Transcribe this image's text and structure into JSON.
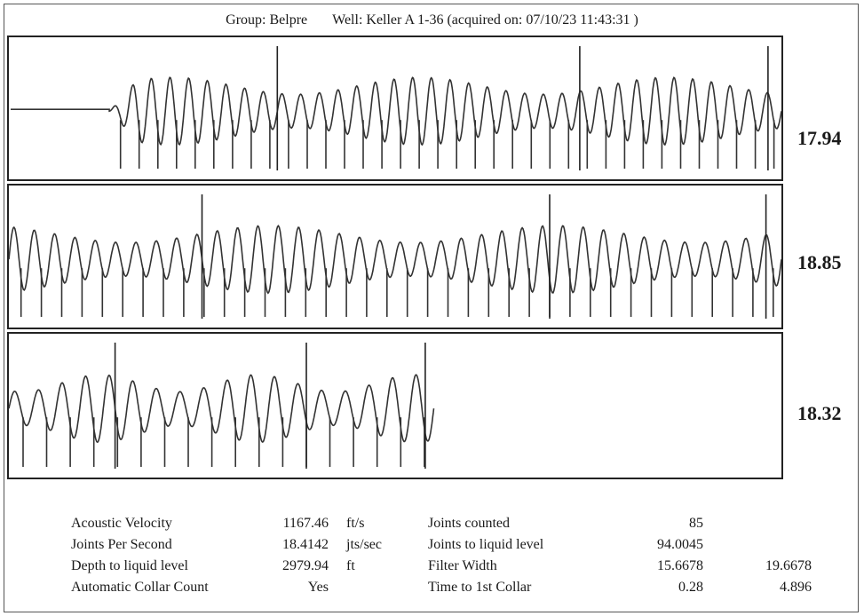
{
  "header": {
    "group": "Group: Belpre",
    "well": "Well: Keller A 1-36 (acquired on: 07/10/23 11:43:31 )"
  },
  "chart_data": [
    {
      "type": "line",
      "title": "",
      "series": [
        {
          "name": "",
          "value_label": "17.94"
        }
      ],
      "cycles": 36,
      "start_fraction": 0.13,
      "joint_rate": "17.94"
    },
    {
      "type": "line",
      "title": "",
      "series": [
        {
          "name": "",
          "value_label": "18.85"
        }
      ],
      "cycles": 38,
      "start_fraction": 0.0,
      "joint_rate": "18.85"
    },
    {
      "type": "line",
      "title": "",
      "series": [
        {
          "name": "",
          "value_label": "18.32"
        }
      ],
      "cycles": 18,
      "start_fraction": 0.0,
      "end_fraction": 0.55,
      "joint_rate": "18.32"
    }
  ],
  "stats": {
    "left_labels": [
      "Acoustic Velocity",
      "Joints Per Second",
      "Depth to liquid level",
      "Automatic Collar Count"
    ],
    "left_values": [
      "1167.46",
      "18.4142",
      "2979.94",
      "Yes"
    ],
    "left_units": [
      "ft/s",
      "jts/sec",
      "ft",
      ""
    ],
    "right_labels": [
      "Joints counted",
      "Joints to liquid level",
      "Filter Width",
      "Time to 1st Collar"
    ],
    "right_values": [
      "85",
      "94.0045",
      "15.6678",
      "0.28"
    ],
    "extra_values": [
      "",
      "",
      "19.6678",
      "4.896"
    ]
  }
}
